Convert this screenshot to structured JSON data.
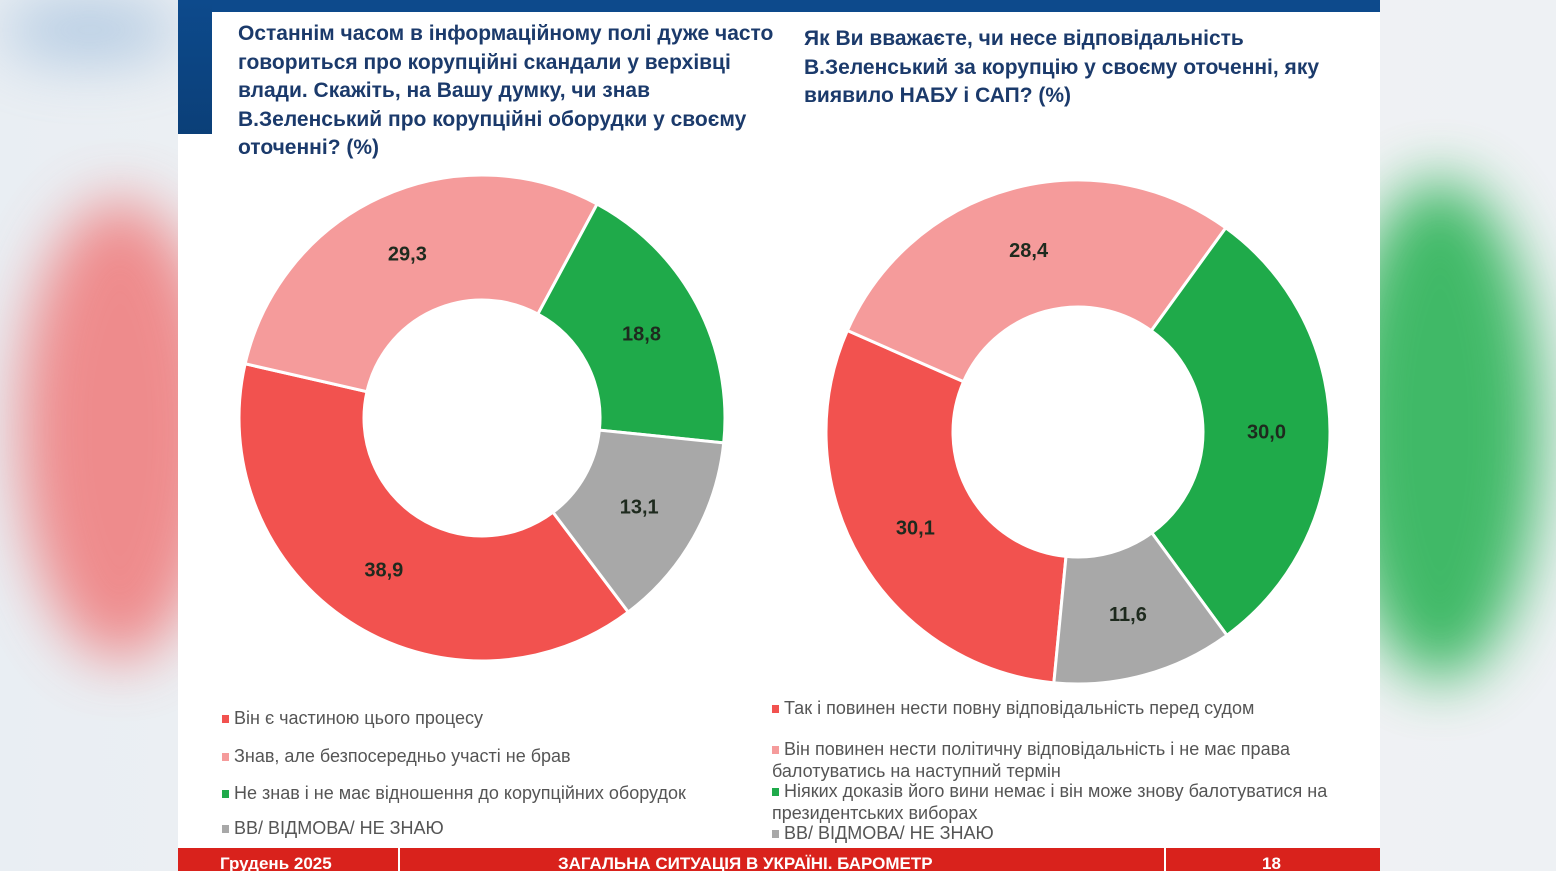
{
  "footer": {
    "date": "Грудень 2025",
    "title": "ЗАГАЛЬНА СИТУАЦІЯ В УКРАЇНІ. БАРОМЕТР",
    "page": "18"
  },
  "chart_data": [
    {
      "type": "pie",
      "donut": true,
      "title": "Останнім часом в інформаційному полі дуже часто говориться про корупційні скандали у верхівці влади. Скажіть, на Вашу думку, чи знав В.Зеленський про корупційні оборудки у своєму оточенні? (%)",
      "categories": [
        "Він є частиною цього процесу",
        "Знав, але безпосередньо участі не брав",
        "Не знав і не має відношення до корупційних оборудок",
        "ВВ/ ВІДМОВА/ НЕ ЗНАЮ"
      ],
      "values": [
        38.9,
        29.3,
        18.8,
        13.1
      ],
      "labels": [
        "38,9",
        "29,3",
        "18,8",
        "13,1"
      ],
      "colors": [
        "#f2524f",
        "#f59b9b",
        "#1faa4a",
        "#a8a8a8"
      ],
      "legend": "bottom"
    },
    {
      "type": "pie",
      "donut": true,
      "title": "Як Ви вважаєте, чи несе відповідальність В.Зеленський за корупцію у своєму оточенні, яку виявило НАБУ і САП? (%)",
      "categories": [
        "Так і повинен нести повну відповідальність перед судом",
        "Він повинен нести політичну відповідальність і не має права балотуватись на наступний термін",
        "Ніяких доказів його вини немає і він може знову балотуватися на президентських виборах",
        "ВВ/ ВІДМОВА/ НЕ ЗНАЮ"
      ],
      "values": [
        30.1,
        28.4,
        30.0,
        11.6
      ],
      "labels": [
        "30,1",
        "28,4",
        "30,0",
        "11,6"
      ],
      "colors": [
        "#f2524f",
        "#f59b9b",
        "#1faa4a",
        "#a8a8a8"
      ],
      "legend": "bottom"
    }
  ]
}
